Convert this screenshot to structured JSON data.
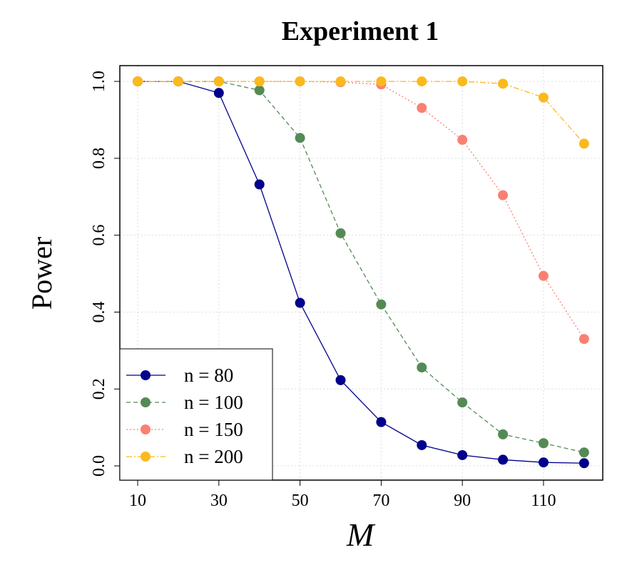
{
  "chart_data": {
    "type": "line",
    "title": "Experiment 1",
    "xlabel": "M",
    "ylabel": "Power",
    "x": [
      10,
      20,
      30,
      40,
      50,
      60,
      70,
      80,
      90,
      100,
      110,
      120
    ],
    "series": [
      {
        "name": "n = 80",
        "color": "#00008b",
        "dash": "solid",
        "values": [
          1.0,
          1.0,
          0.97,
          0.732,
          0.424,
          0.223,
          0.114,
          0.054,
          0.028,
          0.016,
          0.009,
          0.007
        ]
      },
      {
        "name": "n = 100",
        "color": "#548b54",
        "dash": "dashed",
        "values": [
          1.0,
          1.0,
          1.0,
          0.977,
          0.853,
          0.605,
          0.42,
          0.256,
          0.165,
          0.082,
          0.059,
          0.035
        ]
      },
      {
        "name": "n = 150",
        "color": "#fa8072",
        "dash": "dotted",
        "values": [
          1.0,
          1.0,
          1.0,
          1.0,
          1.0,
          0.998,
          0.992,
          0.931,
          0.848,
          0.704,
          0.494,
          0.33
        ]
      },
      {
        "name": "n = 200",
        "color": "#fbb91b",
        "dash": "dotdash",
        "values": [
          1.0,
          1.0,
          1.0,
          1.0,
          1.0,
          1.0,
          1.0,
          1.0,
          1.0,
          0.994,
          0.958,
          0.838
        ]
      }
    ],
    "xlim": [
      5.6,
      124.6
    ],
    "ylim": [
      -0.037,
      1.041
    ],
    "xticks": [
      10,
      30,
      50,
      70,
      90,
      110
    ],
    "yticks": [
      {
        "value": 0,
        "label": "0.0"
      },
      0.2,
      0.4,
      0.6,
      0.8,
      {
        "value": 1,
        "label": "1.0"
      }
    ],
    "grid": true,
    "legend": "lower left"
  }
}
